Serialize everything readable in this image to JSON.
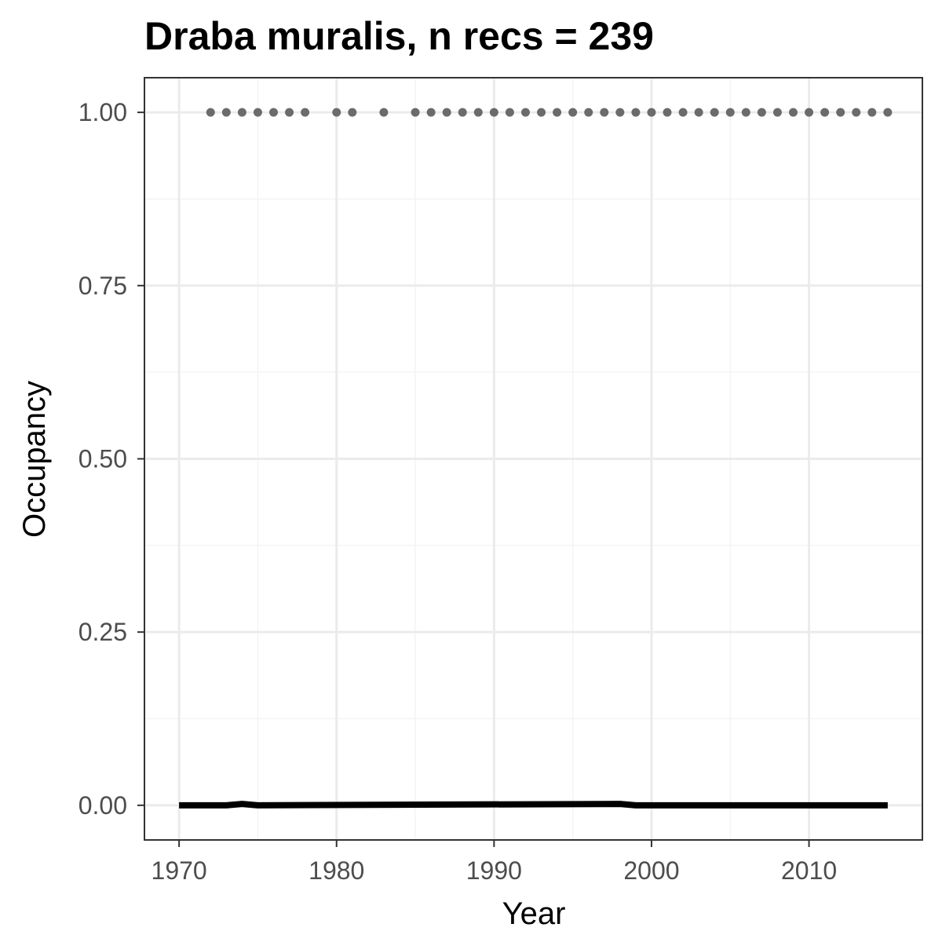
{
  "chart_data": {
    "type": "line",
    "title": "Draba muralis, n recs = 239",
    "xlabel": "Year",
    "ylabel": "Occupancy",
    "xlim": [
      1967.8,
      2017.2
    ],
    "ylim": [
      -0.05,
      1.05
    ],
    "x_ticks": [
      1970,
      1980,
      1990,
      2000,
      2010
    ],
    "x_tick_labels": [
      "1970",
      "1980",
      "1990",
      "2000",
      "2010"
    ],
    "y_ticks": [
      0.0,
      0.25,
      0.5,
      0.75,
      1.0
    ],
    "y_tick_labels": [
      "0.00",
      "0.25",
      "0.50",
      "0.75",
      "1.00"
    ],
    "grid": true,
    "series": [
      {
        "kind": "points",
        "color": "#6b6b6b",
        "x": [
          1972,
          1973,
          1974,
          1975,
          1976,
          1977,
          1978,
          1980,
          1981,
          1983,
          1985,
          1986,
          1987,
          1988,
          1989,
          1990,
          1991,
          1992,
          1993,
          1994,
          1995,
          1996,
          1997,
          1998,
          1999,
          2000,
          2001,
          2002,
          2003,
          2004,
          2005,
          2006,
          2007,
          2008,
          2009,
          2010,
          2011,
          2012,
          2013,
          2014,
          2015
        ],
        "y": [
          1,
          1,
          1,
          1,
          1,
          1,
          1,
          1,
          1,
          1,
          1,
          1,
          1,
          1,
          1,
          1,
          1,
          1,
          1,
          1,
          1,
          1,
          1,
          1,
          1,
          1,
          1,
          1,
          1,
          1,
          1,
          1,
          1,
          1,
          1,
          1,
          1,
          1,
          1,
          1,
          1
        ]
      },
      {
        "kind": "line",
        "color": "#000000",
        "x": [
          1970,
          1973,
          1974,
          1975,
          1998,
          1999,
          2015
        ],
        "y": [
          0.0,
          0.0,
          0.002,
          0.0,
          0.002,
          0.0,
          0.0
        ]
      }
    ],
    "colors": {
      "panel_border": "#333333",
      "grid_major": "#ebebeb",
      "grid_minor": "#f4f4f4",
      "tick": "#333333"
    }
  }
}
